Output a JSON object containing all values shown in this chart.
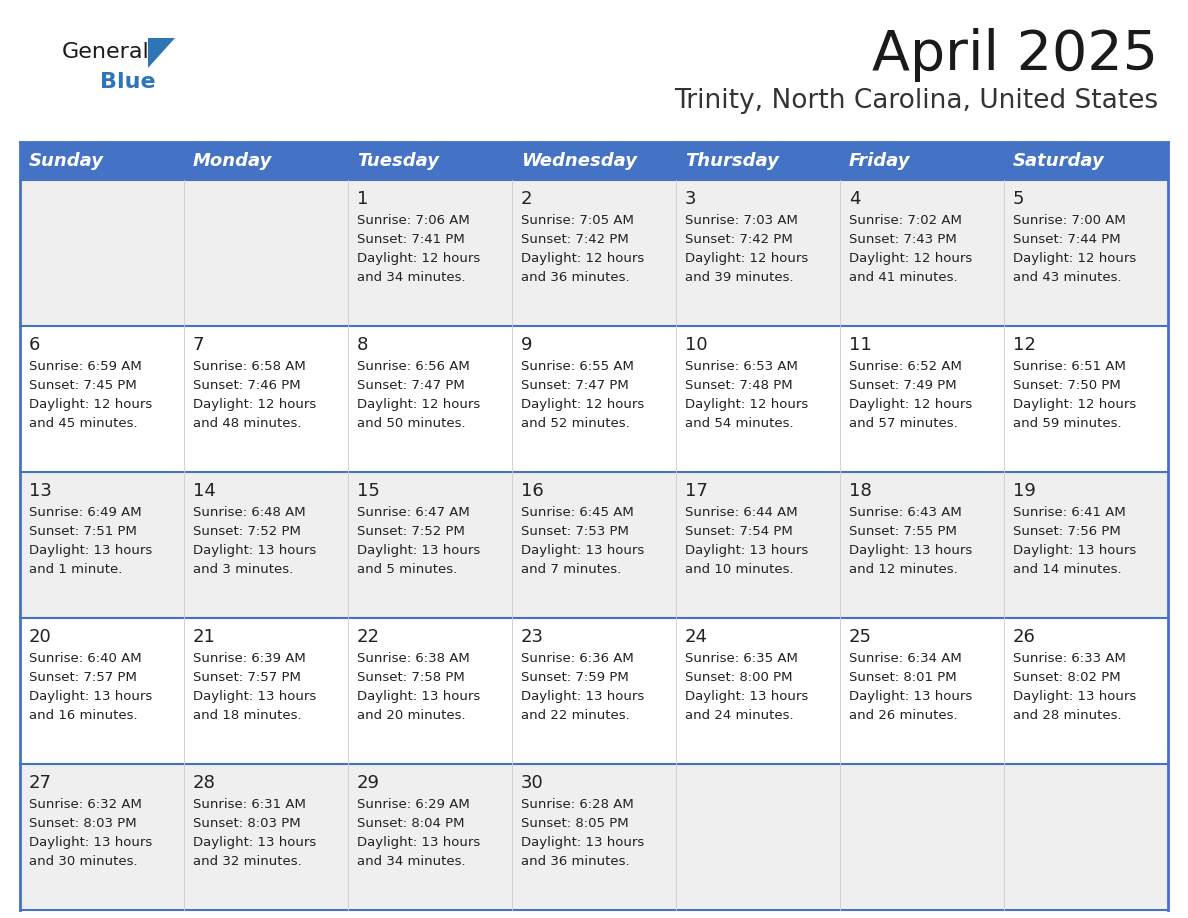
{
  "title": "April 2025",
  "subtitle": "Trinity, North Carolina, United States",
  "header_bg": "#4472C4",
  "header_text_color": "#FFFFFF",
  "header_font_size": 13,
  "day_names": [
    "Sunday",
    "Monday",
    "Tuesday",
    "Wednesday",
    "Thursday",
    "Friday",
    "Saturday"
  ],
  "title_font_size": 40,
  "subtitle_font_size": 19,
  "cell_text_color": "#222222",
  "cell_bg_odd": "#EFEFEF",
  "cell_bg_even": "#FFFFFF",
  "grid_color": "#4472C4",
  "logo_black": "#1a1a1a",
  "logo_blue": "#2E75B6",
  "days": [
    {
      "day": 1,
      "col": 2,
      "row": 0,
      "sunrise": "7:06 AM",
      "sunset": "7:41 PM",
      "daylight_h": "12 hours",
      "daylight_m": "and 34 minutes."
    },
    {
      "day": 2,
      "col": 3,
      "row": 0,
      "sunrise": "7:05 AM",
      "sunset": "7:42 PM",
      "daylight_h": "12 hours",
      "daylight_m": "and 36 minutes."
    },
    {
      "day": 3,
      "col": 4,
      "row": 0,
      "sunrise": "7:03 AM",
      "sunset": "7:42 PM",
      "daylight_h": "12 hours",
      "daylight_m": "and 39 minutes."
    },
    {
      "day": 4,
      "col": 5,
      "row": 0,
      "sunrise": "7:02 AM",
      "sunset": "7:43 PM",
      "daylight_h": "12 hours",
      "daylight_m": "and 41 minutes."
    },
    {
      "day": 5,
      "col": 6,
      "row": 0,
      "sunrise": "7:00 AM",
      "sunset": "7:44 PM",
      "daylight_h": "12 hours",
      "daylight_m": "and 43 minutes."
    },
    {
      "day": 6,
      "col": 0,
      "row": 1,
      "sunrise": "6:59 AM",
      "sunset": "7:45 PM",
      "daylight_h": "12 hours",
      "daylight_m": "and 45 minutes."
    },
    {
      "day": 7,
      "col": 1,
      "row": 1,
      "sunrise": "6:58 AM",
      "sunset": "7:46 PM",
      "daylight_h": "12 hours",
      "daylight_m": "and 48 minutes."
    },
    {
      "day": 8,
      "col": 2,
      "row": 1,
      "sunrise": "6:56 AM",
      "sunset": "7:47 PM",
      "daylight_h": "12 hours",
      "daylight_m": "and 50 minutes."
    },
    {
      "day": 9,
      "col": 3,
      "row": 1,
      "sunrise": "6:55 AM",
      "sunset": "7:47 PM",
      "daylight_h": "12 hours",
      "daylight_m": "and 52 minutes."
    },
    {
      "day": 10,
      "col": 4,
      "row": 1,
      "sunrise": "6:53 AM",
      "sunset": "7:48 PM",
      "daylight_h": "12 hours",
      "daylight_m": "and 54 minutes."
    },
    {
      "day": 11,
      "col": 5,
      "row": 1,
      "sunrise": "6:52 AM",
      "sunset": "7:49 PM",
      "daylight_h": "12 hours",
      "daylight_m": "and 57 minutes."
    },
    {
      "day": 12,
      "col": 6,
      "row": 1,
      "sunrise": "6:51 AM",
      "sunset": "7:50 PM",
      "daylight_h": "12 hours",
      "daylight_m": "and 59 minutes."
    },
    {
      "day": 13,
      "col": 0,
      "row": 2,
      "sunrise": "6:49 AM",
      "sunset": "7:51 PM",
      "daylight_h": "13 hours",
      "daylight_m": "and 1 minute."
    },
    {
      "day": 14,
      "col": 1,
      "row": 2,
      "sunrise": "6:48 AM",
      "sunset": "7:52 PM",
      "daylight_h": "13 hours",
      "daylight_m": "and 3 minutes."
    },
    {
      "day": 15,
      "col": 2,
      "row": 2,
      "sunrise": "6:47 AM",
      "sunset": "7:52 PM",
      "daylight_h": "13 hours",
      "daylight_m": "and 5 minutes."
    },
    {
      "day": 16,
      "col": 3,
      "row": 2,
      "sunrise": "6:45 AM",
      "sunset": "7:53 PM",
      "daylight_h": "13 hours",
      "daylight_m": "and 7 minutes."
    },
    {
      "day": 17,
      "col": 4,
      "row": 2,
      "sunrise": "6:44 AM",
      "sunset": "7:54 PM",
      "daylight_h": "13 hours",
      "daylight_m": "and 10 minutes."
    },
    {
      "day": 18,
      "col": 5,
      "row": 2,
      "sunrise": "6:43 AM",
      "sunset": "7:55 PM",
      "daylight_h": "13 hours",
      "daylight_m": "and 12 minutes."
    },
    {
      "day": 19,
      "col": 6,
      "row": 2,
      "sunrise": "6:41 AM",
      "sunset": "7:56 PM",
      "daylight_h": "13 hours",
      "daylight_m": "and 14 minutes."
    },
    {
      "day": 20,
      "col": 0,
      "row": 3,
      "sunrise": "6:40 AM",
      "sunset": "7:57 PM",
      "daylight_h": "13 hours",
      "daylight_m": "and 16 minutes."
    },
    {
      "day": 21,
      "col": 1,
      "row": 3,
      "sunrise": "6:39 AM",
      "sunset": "7:57 PM",
      "daylight_h": "13 hours",
      "daylight_m": "and 18 minutes."
    },
    {
      "day": 22,
      "col": 2,
      "row": 3,
      "sunrise": "6:38 AM",
      "sunset": "7:58 PM",
      "daylight_h": "13 hours",
      "daylight_m": "and 20 minutes."
    },
    {
      "day": 23,
      "col": 3,
      "row": 3,
      "sunrise": "6:36 AM",
      "sunset": "7:59 PM",
      "daylight_h": "13 hours",
      "daylight_m": "and 22 minutes."
    },
    {
      "day": 24,
      "col": 4,
      "row": 3,
      "sunrise": "6:35 AM",
      "sunset": "8:00 PM",
      "daylight_h": "13 hours",
      "daylight_m": "and 24 minutes."
    },
    {
      "day": 25,
      "col": 5,
      "row": 3,
      "sunrise": "6:34 AM",
      "sunset": "8:01 PM",
      "daylight_h": "13 hours",
      "daylight_m": "and 26 minutes."
    },
    {
      "day": 26,
      "col": 6,
      "row": 3,
      "sunrise": "6:33 AM",
      "sunset": "8:02 PM",
      "daylight_h": "13 hours",
      "daylight_m": "and 28 minutes."
    },
    {
      "day": 27,
      "col": 0,
      "row": 4,
      "sunrise": "6:32 AM",
      "sunset": "8:03 PM",
      "daylight_h": "13 hours",
      "daylight_m": "and 30 minutes."
    },
    {
      "day": 28,
      "col": 1,
      "row": 4,
      "sunrise": "6:31 AM",
      "sunset": "8:03 PM",
      "daylight_h": "13 hours",
      "daylight_m": "and 32 minutes."
    },
    {
      "day": 29,
      "col": 2,
      "row": 4,
      "sunrise": "6:29 AM",
      "sunset": "8:04 PM",
      "daylight_h": "13 hours",
      "daylight_m": "and 34 minutes."
    },
    {
      "day": 30,
      "col": 3,
      "row": 4,
      "sunrise": "6:28 AM",
      "sunset": "8:05 PM",
      "daylight_h": "13 hours",
      "daylight_m": "and 36 minutes."
    }
  ]
}
